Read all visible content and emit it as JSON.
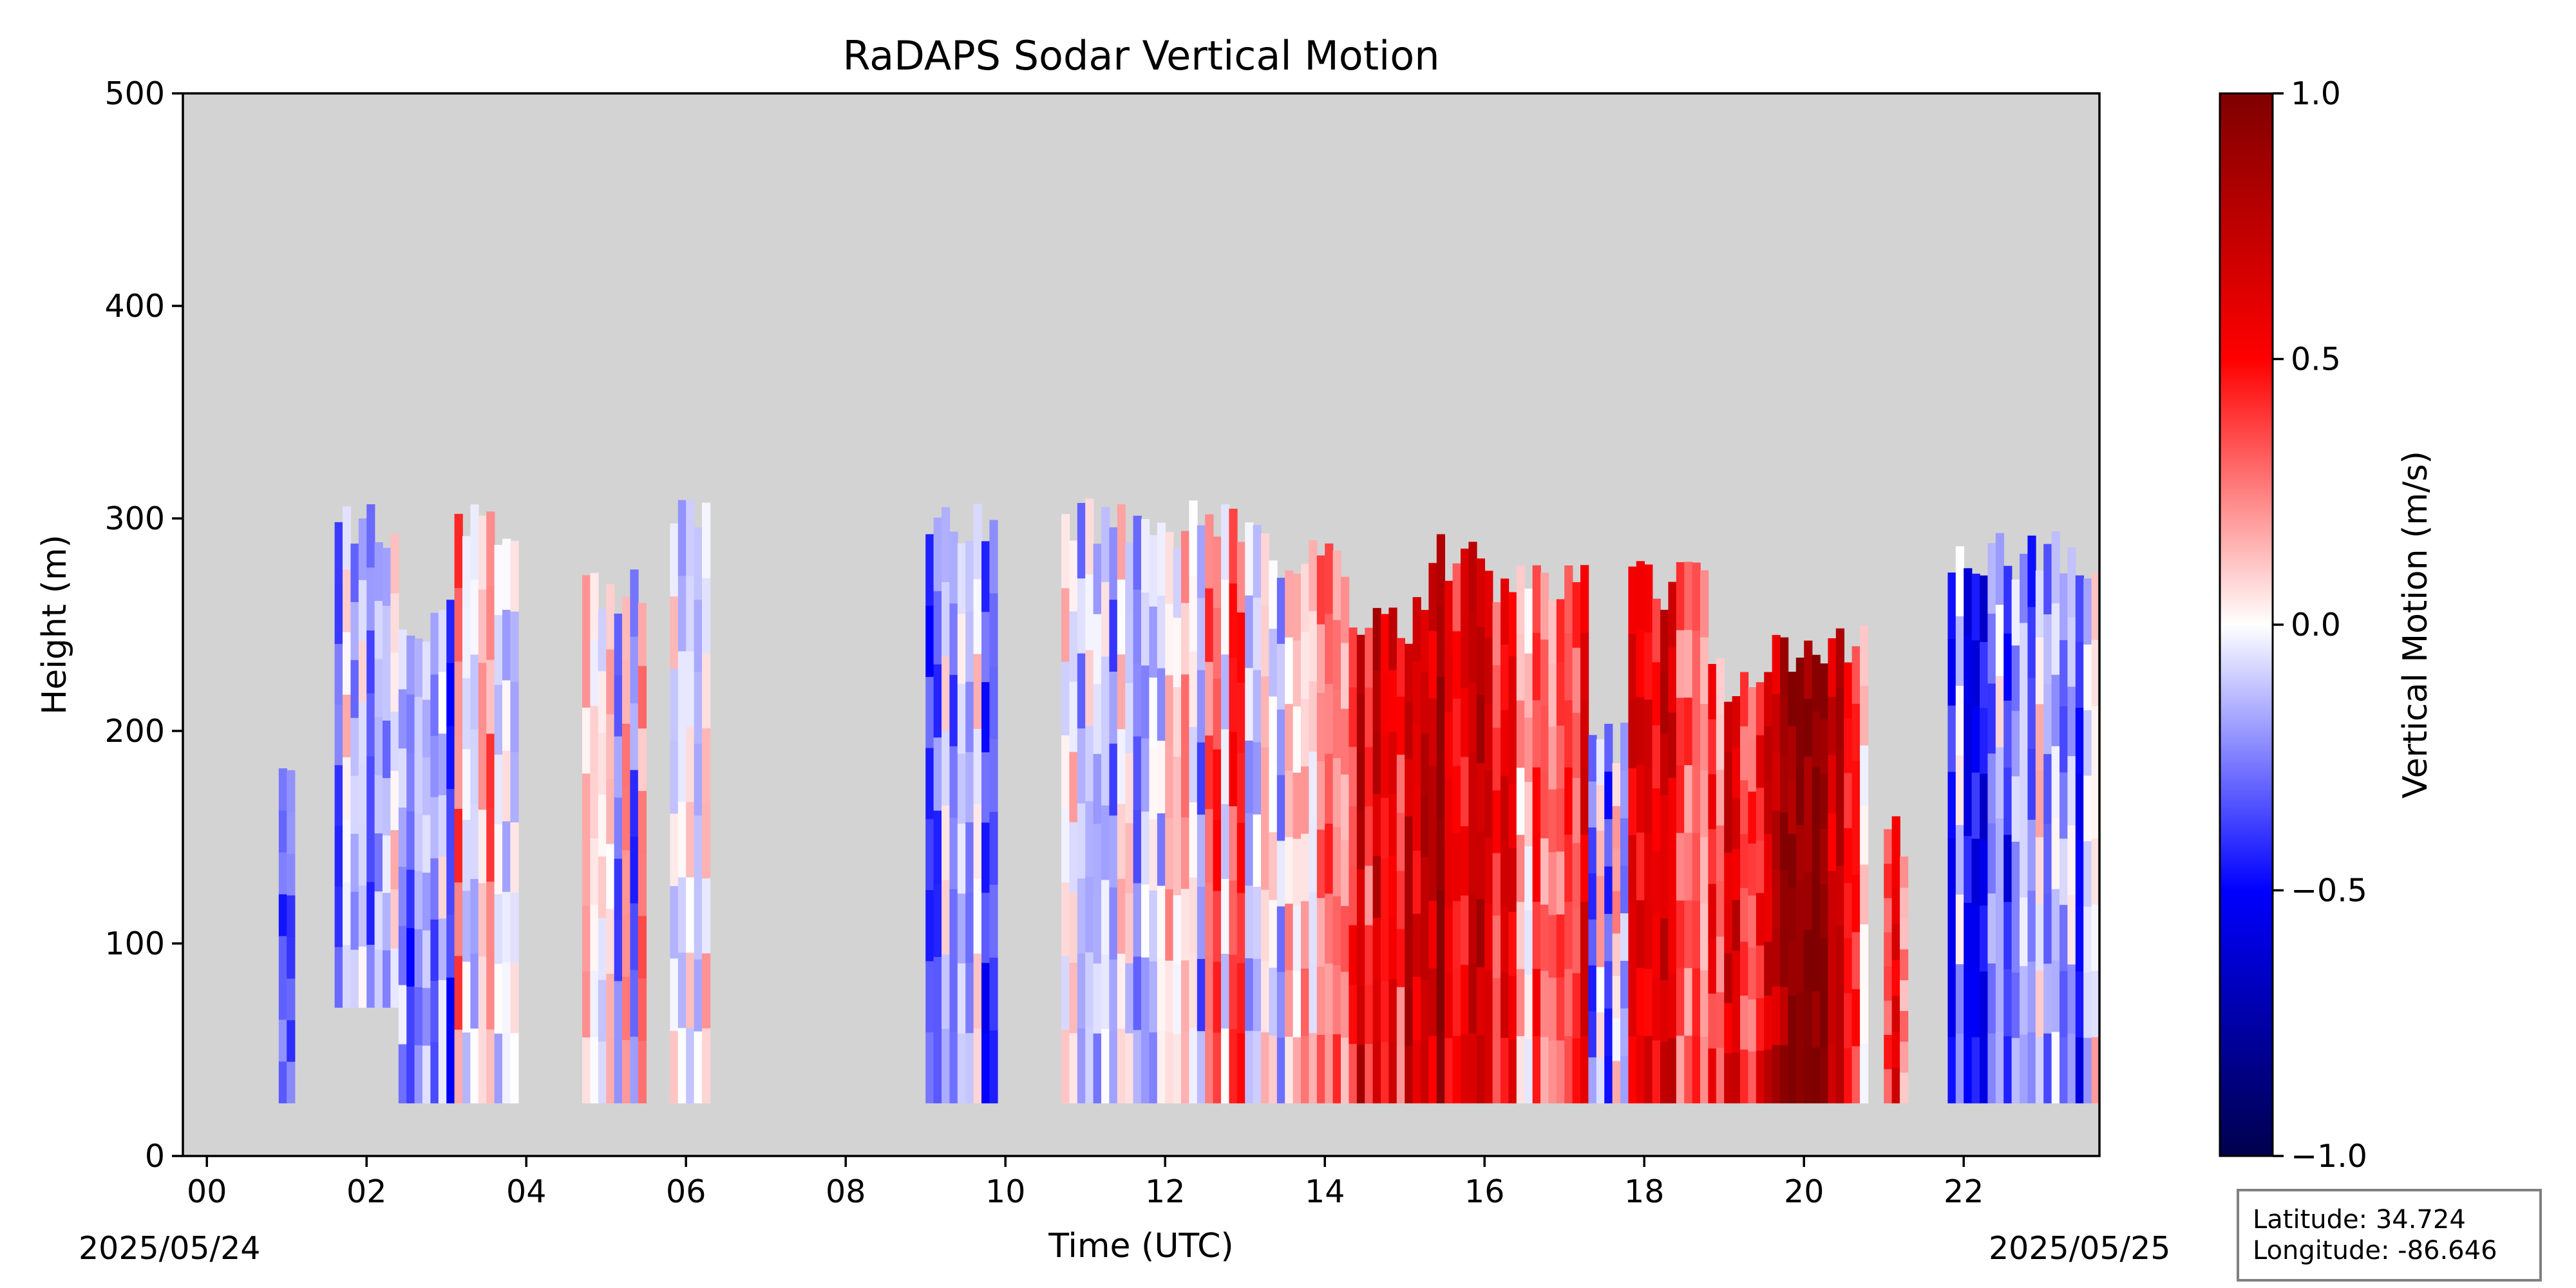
{
  "chart_data": {
    "type": "heatmap",
    "title": "RaDAPS Sodar Vertical Motion",
    "xlabel": "Time (UTC)",
    "ylabel": "Height (m)",
    "x_ticks": [
      "00",
      "02",
      "04",
      "06",
      "08",
      "10",
      "12",
      "14",
      "16",
      "18",
      "20",
      "22"
    ],
    "x_tick_hours": [
      0,
      2,
      4,
      6,
      8,
      10,
      12,
      14,
      16,
      18,
      20,
      22
    ],
    "xlim_hours": [
      -0.3,
      23.7
    ],
    "y_ticks": [
      "0",
      "100",
      "200",
      "300",
      "400",
      "500"
    ],
    "y_tick_values": [
      0,
      100,
      200,
      300,
      400,
      500
    ],
    "ylim": [
      0,
      500
    ],
    "date_start": "2025/05/24",
    "date_end": "2025/05/25",
    "colorbar": {
      "label": "Vertical Motion (m/s)",
      "range": [
        -1.0,
        1.0
      ],
      "ticks": [
        "1.0",
        "0.5",
        "0.0",
        "−0.5",
        "−1.0"
      ],
      "tick_values": [
        1.0,
        0.5,
        0.0,
        -0.5,
        -1.0
      ],
      "colormap": "seismic",
      "colors": [
        "#00004c",
        "#0000ff",
        "#ffffff",
        "#ff0000",
        "#7f0000"
      ]
    },
    "background_color": "#d3d3d3",
    "grid": false,
    "data_segments": [
      {
        "start": 0.9,
        "end": 1.1,
        "bottom": 25,
        "top": 190,
        "mean": -0.45
      },
      {
        "start": 1.6,
        "end": 2.4,
        "bottom": 70,
        "top": 310,
        "mean": -0.15
      },
      {
        "start": 2.4,
        "end": 3.1,
        "bottom": 25,
        "top": 265,
        "mean": -0.2
      },
      {
        "start": 3.1,
        "end": 3.9,
        "bottom": 25,
        "top": 310,
        "mean": 0.05
      },
      {
        "start": 4.7,
        "end": 5.5,
        "bottom": 25,
        "top": 280,
        "mean": -0.05
      },
      {
        "start": 5.8,
        "end": 6.3,
        "bottom": 25,
        "top": 310,
        "mean": -0.1
      },
      {
        "start": 9.0,
        "end": 9.9,
        "bottom": 25,
        "top": 310,
        "mean": -0.2
      },
      {
        "start": 10.7,
        "end": 12.5,
        "bottom": 25,
        "top": 310,
        "mean": -0.1
      },
      {
        "start": 12.5,
        "end": 13.3,
        "bottom": 25,
        "top": 310,
        "mean": 0.15
      },
      {
        "start": 13.3,
        "end": 14.3,
        "bottom": 25,
        "top": 295,
        "mean": 0.1
      },
      {
        "start": 14.3,
        "end": 15.3,
        "bottom": 25,
        "top": 265,
        "mean": 0.5
      },
      {
        "start": 15.3,
        "end": 16.1,
        "bottom": 25,
        "top": 295,
        "mean": 0.7
      },
      {
        "start": 16.1,
        "end": 17.3,
        "bottom": 25,
        "top": 280,
        "mean": 0.35
      },
      {
        "start": 17.3,
        "end": 17.8,
        "bottom": 25,
        "top": 205,
        "mean": -0.1
      },
      {
        "start": 17.8,
        "end": 18.8,
        "bottom": 25,
        "top": 280,
        "mean": 0.5
      },
      {
        "start": 18.8,
        "end": 19.5,
        "bottom": 25,
        "top": 235,
        "mean": 0.4
      },
      {
        "start": 19.5,
        "end": 20.5,
        "bottom": 25,
        "top": 250,
        "mean": 0.75
      },
      {
        "start": 20.5,
        "end": 20.8,
        "bottom": 25,
        "top": 250,
        "mean": 0.35
      },
      {
        "start": 21.0,
        "end": 21.3,
        "bottom": 25,
        "top": 160,
        "mean": 0.35
      },
      {
        "start": 21.8,
        "end": 22.7,
        "bottom": 25,
        "top": 295,
        "mean": -0.3
      },
      {
        "start": 22.7,
        "end": 23.7,
        "bottom": 25,
        "top": 295,
        "mean": -0.2
      }
    ]
  },
  "info_box": {
    "latitude": "Latitude: 34.724",
    "longitude": "Longitude: -86.646"
  }
}
